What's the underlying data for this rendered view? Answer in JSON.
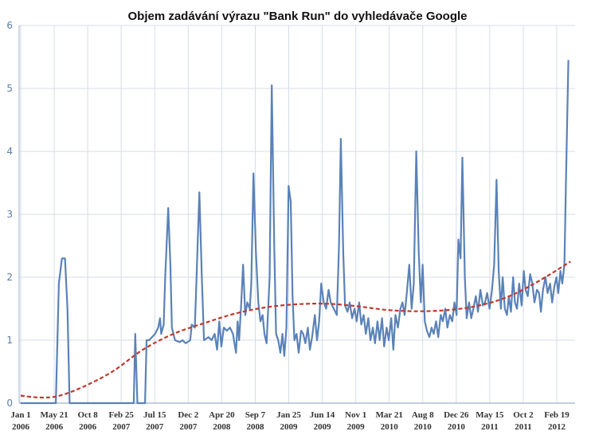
{
  "chart_data": {
    "type": "line",
    "title": "Objem zadávání výrazu \"Bank Run\" do vyhledávače Google",
    "xlabel": "",
    "ylabel": "",
    "ylim": [
      0,
      6
    ],
    "yticks": [
      "0",
      "1",
      "2",
      "3",
      "4",
      "5",
      "6"
    ],
    "xticks": [
      {
        "l1": "Jan 1",
        "l2": "2006"
      },
      {
        "l1": "May 21",
        "l2": "2006"
      },
      {
        "l1": "Oct 8",
        "l2": "2006"
      },
      {
        "l1": "Feb 25",
        "l2": "2007"
      },
      {
        "l1": "Jul 15",
        "l2": "2007"
      },
      {
        "l1": "Dec 2",
        "l2": "2007"
      },
      {
        "l1": "Apr 20",
        "l2": "2008"
      },
      {
        "l1": "Sep 7",
        "l2": "2008"
      },
      {
        "l1": "Jan 25",
        "l2": "2009"
      },
      {
        "l1": "Jun 14",
        "l2": "2009"
      },
      {
        "l1": "Nov 1",
        "l2": "2009"
      },
      {
        "l1": "Mar 21",
        "l2": "2010"
      },
      {
        "l1": "Aug 8",
        "l2": "2010"
      },
      {
        "l1": "Dec 26",
        "l2": "2010"
      },
      {
        "l1": "May 15",
        "l2": "2011"
      },
      {
        "l1": "Oct 2",
        "l2": "2011"
      },
      {
        "l1": "Feb 19",
        "l2": "2012"
      }
    ],
    "grid": true,
    "colors": {
      "series": "#5a82b8",
      "trend": "#c0392b",
      "grid": "#d5dde8",
      "axis": "#9fb0c8"
    },
    "series": [
      {
        "style": "solid",
        "points": [
          [
            0,
            0
          ],
          [
            4,
            0
          ],
          [
            8,
            0
          ],
          [
            11.5,
            0
          ],
          [
            12.5,
            1.9
          ],
          [
            13.5,
            2.3
          ],
          [
            14.5,
            2.3
          ],
          [
            15.3,
            1.5
          ],
          [
            16,
            0
          ],
          [
            17,
            0
          ],
          [
            21,
            0
          ],
          [
            26,
            0
          ],
          [
            31,
            0
          ],
          [
            36,
            0
          ],
          [
            37,
            0
          ],
          [
            37.5,
            1.1
          ],
          [
            38.2,
            0
          ],
          [
            40,
            0
          ],
          [
            40.7,
            0
          ],
          [
            41.2,
            1.0
          ],
          [
            42,
            1.0
          ],
          [
            43,
            1.05
          ],
          [
            44,
            1.1
          ],
          [
            45,
            1.2
          ],
          [
            45.6,
            1.35
          ],
          [
            46,
            1.1
          ],
          [
            46.8,
            1.25
          ],
          [
            47.3,
            2.0
          ],
          [
            48.3,
            3.1
          ],
          [
            49,
            2.2
          ],
          [
            49.5,
            1.2
          ],
          [
            50.5,
            1.0
          ],
          [
            52,
            0.97
          ],
          [
            53,
            1.0
          ],
          [
            54,
            0.95
          ],
          [
            55.5,
            1.0
          ],
          [
            56,
            1.25
          ],
          [
            57,
            1.2
          ],
          [
            57.5,
            1.9
          ],
          [
            58.5,
            3.35
          ],
          [
            59.3,
            2.0
          ],
          [
            60,
            1.0
          ],
          [
            61.5,
            1.05
          ],
          [
            62.5,
            1.0
          ],
          [
            63.5,
            1.1
          ],
          [
            64.3,
            0.85
          ],
          [
            65,
            1.3
          ],
          [
            65.7,
            0.9
          ],
          [
            66.5,
            1.2
          ],
          [
            67.5,
            1.15
          ],
          [
            68.5,
            1.2
          ],
          [
            69.5,
            1.1
          ],
          [
            70.5,
            0.8
          ],
          [
            71,
            1.3
          ],
          [
            71.5,
            1.0
          ],
          [
            72.2,
            1.6
          ],
          [
            72.8,
            2.2
          ],
          [
            73.5,
            1.4
          ],
          [
            74.2,
            1.6
          ],
          [
            75,
            1.5
          ],
          [
            75.5,
            1.9
          ],
          [
            76.2,
            3.65
          ],
          [
            77,
            2.4
          ],
          [
            77.8,
            1.6
          ],
          [
            78.5,
            1.3
          ],
          [
            79.2,
            1.4
          ],
          [
            79.8,
            1.1
          ],
          [
            80.5,
            0.95
          ],
          [
            81.5,
            2.0
          ],
          [
            82.2,
            5.05
          ],
          [
            83,
            2.5
          ],
          [
            83.6,
            1.1
          ],
          [
            84.3,
            1.0
          ],
          [
            85,
            0.8
          ],
          [
            85.7,
            1.1
          ],
          [
            86.3,
            0.75
          ],
          [
            87,
            1.2
          ],
          [
            87.7,
            3.45
          ],
          [
            88.4,
            3.2
          ],
          [
            89,
            1.7
          ],
          [
            89.6,
            1.0
          ],
          [
            90.3,
            1.1
          ],
          [
            91,
            0.8
          ],
          [
            91.8,
            1.15
          ],
          [
            92.5,
            1.1
          ],
          [
            93.2,
            0.95
          ],
          [
            94,
            1.2
          ],
          [
            94.7,
            0.85
          ],
          [
            95.4,
            1.05
          ],
          [
            96.3,
            1.4
          ],
          [
            97,
            1.0
          ],
          [
            97.7,
            1.3
          ],
          [
            98.4,
            1.9
          ],
          [
            99.2,
            1.6
          ],
          [
            100,
            1.5
          ],
          [
            100.8,
            1.8
          ],
          [
            101.5,
            1.6
          ],
          [
            102.5,
            1.5
          ],
          [
            103.5,
            1.4
          ],
          [
            104.2,
            2.5
          ],
          [
            104.8,
            4.2
          ],
          [
            105.6,
            2.4
          ],
          [
            106.2,
            1.55
          ],
          [
            107,
            1.45
          ],
          [
            107.7,
            1.6
          ],
          [
            108.5,
            1.35
          ],
          [
            109.3,
            1.5
          ],
          [
            110,
            1.3
          ],
          [
            110.8,
            1.6
          ],
          [
            111.5,
            1.25
          ],
          [
            112.3,
            1.4
          ],
          [
            113,
            1.1
          ],
          [
            113.8,
            1.35
          ],
          [
            114.5,
            1.0
          ],
          [
            115.3,
            1.2
          ],
          [
            116,
            0.95
          ],
          [
            116.8,
            1.3
          ],
          [
            117.5,
            1.0
          ],
          [
            118.3,
            1.35
          ],
          [
            119,
            0.9
          ],
          [
            119.8,
            1.2
          ],
          [
            120.5,
            1.0
          ],
          [
            121.3,
            1.35
          ],
          [
            122,
            0.85
          ],
          [
            122.7,
            1.4
          ],
          [
            123.5,
            1.2
          ],
          [
            124.3,
            1.5
          ],
          [
            125,
            1.6
          ],
          [
            125.7,
            1.4
          ],
          [
            126.5,
            1.8
          ],
          [
            127.2,
            2.2
          ],
          [
            128,
            1.5
          ],
          [
            128.7,
            1.9
          ],
          [
            129.5,
            4.0
          ],
          [
            130.3,
            2.4
          ],
          [
            131,
            1.6
          ],
          [
            131.6,
            2.2
          ],
          [
            132.3,
            1.3
          ],
          [
            133,
            1.15
          ],
          [
            133.8,
            1.05
          ],
          [
            134.5,
            1.2
          ],
          [
            135.2,
            1.1
          ],
          [
            136,
            1.3
          ],
          [
            136.7,
            1.05
          ],
          [
            137.5,
            1.4
          ],
          [
            138.2,
            1.3
          ],
          [
            139,
            1.5
          ],
          [
            139.7,
            1.2
          ],
          [
            140.5,
            1.4
          ],
          [
            141.3,
            1.3
          ],
          [
            142,
            1.6
          ],
          [
            142.7,
            1.4
          ],
          [
            143.3,
            2.6
          ],
          [
            144,
            2.3
          ],
          [
            144.6,
            3.9
          ],
          [
            145.4,
            2.0
          ],
          [
            146,
            1.35
          ],
          [
            146.8,
            1.6
          ],
          [
            147.5,
            1.35
          ],
          [
            148.2,
            1.5
          ],
          [
            149,
            1.7
          ],
          [
            149.7,
            1.45
          ],
          [
            150.5,
            1.8
          ],
          [
            151.3,
            1.55
          ],
          [
            152,
            1.6
          ],
          [
            152.7,
            1.75
          ],
          [
            153.5,
            1.5
          ],
          [
            154.3,
            1.8
          ],
          [
            155,
            2.2
          ],
          [
            155.8,
            3.55
          ],
          [
            156.5,
            2.1
          ],
          [
            157.2,
            1.5
          ],
          [
            157.8,
            2.0
          ],
          [
            158.5,
            1.5
          ],
          [
            159.2,
            1.4
          ],
          [
            159.8,
            1.7
          ],
          [
            160.5,
            1.45
          ],
          [
            161.2,
            2.0
          ],
          [
            161.8,
            1.6
          ],
          [
            162.5,
            1.5
          ],
          [
            163.2,
            1.9
          ],
          [
            164,
            1.55
          ],
          [
            164.7,
            2.1
          ],
          [
            165.3,
            1.8
          ],
          [
            166,
            1.7
          ],
          [
            166.8,
            2.05
          ],
          [
            167.5,
            1.9
          ],
          [
            168.2,
            1.6
          ],
          [
            169,
            1.8
          ],
          [
            169.7,
            1.75
          ],
          [
            170.3,
            1.45
          ],
          [
            171,
            1.8
          ],
          [
            171.8,
            2.0
          ],
          [
            172.5,
            1.75
          ],
          [
            173.3,
            1.9
          ],
          [
            174,
            1.6
          ],
          [
            174.7,
            1.85
          ],
          [
            175.4,
            2.0
          ],
          [
            176,
            1.75
          ],
          [
            176.7,
            2.1
          ],
          [
            177.3,
            1.9
          ],
          [
            178,
            2.2
          ],
          [
            178.5,
            3.5
          ],
          [
            179.3,
            5.45
          ]
        ]
      },
      {
        "style": "dashed",
        "points": [
          [
            0,
            0.12
          ],
          [
            6,
            0.09
          ],
          [
            12,
            0.11
          ],
          [
            20,
            0.25
          ],
          [
            30,
            0.5
          ],
          [
            40,
            0.85
          ],
          [
            50,
            1.1
          ],
          [
            60,
            1.27
          ],
          [
            70,
            1.42
          ],
          [
            80,
            1.52
          ],
          [
            90,
            1.57
          ],
          [
            100,
            1.58
          ],
          [
            110,
            1.54
          ],
          [
            120,
            1.48
          ],
          [
            130,
            1.46
          ],
          [
            140,
            1.48
          ],
          [
            150,
            1.55
          ],
          [
            160,
            1.7
          ],
          [
            170,
            1.95
          ],
          [
            180,
            2.25
          ]
        ]
      }
    ]
  }
}
